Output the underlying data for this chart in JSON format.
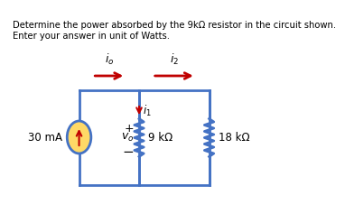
{
  "title_line1": "Determine the power absorbed by the 9kΩ resistor in the circuit shown.",
  "title_line2": "Enter your answer in unit of Watts.",
  "bg_color": "#ffffff",
  "circuit_color": "#4472c4",
  "arrow_color": "#c00000",
  "text_color": "#000000",
  "source_fill": "#ffd966",
  "wire_lw": 2.0,
  "fig_width": 3.5,
  "fig_height": 2.27
}
